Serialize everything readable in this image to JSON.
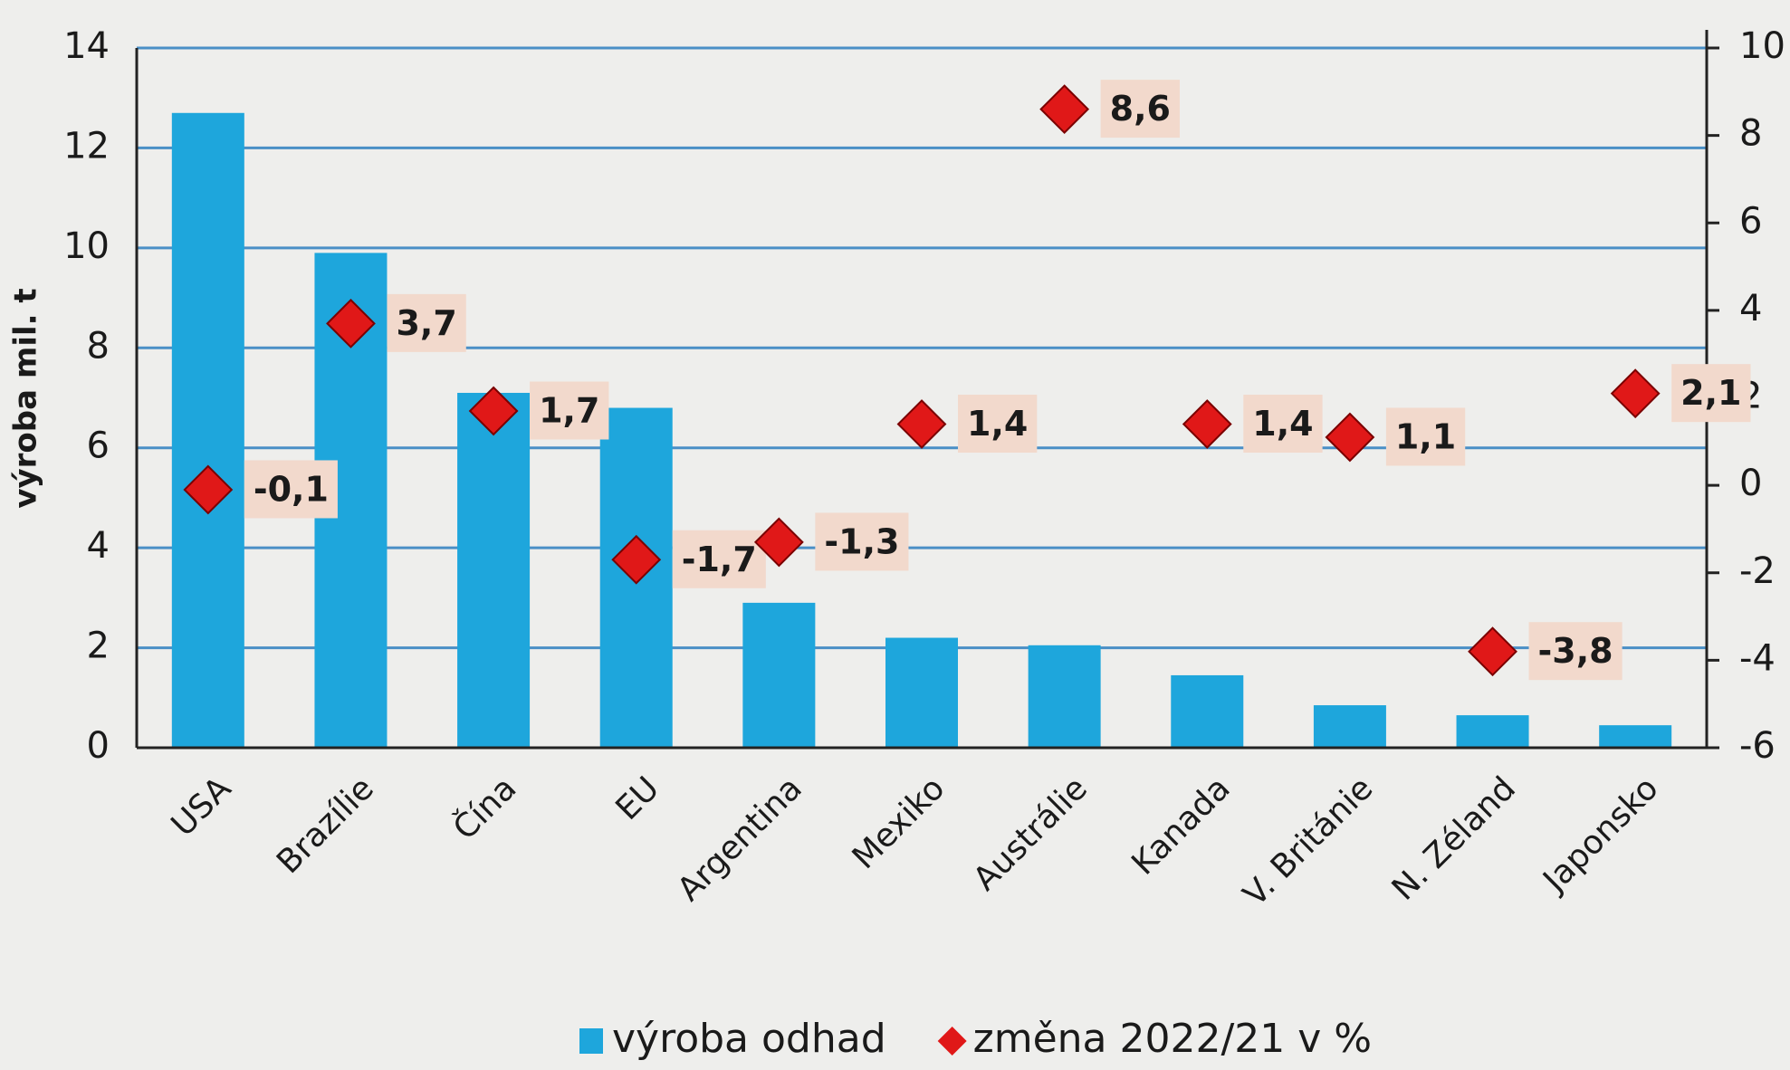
{
  "chart_data": {
    "type": "bar",
    "y_label": "výroba mil. t",
    "categories": [
      "USA",
      "Brazílie",
      "Čína",
      "EU",
      "Argentina",
      "Mexiko",
      "Austrálie",
      "Kanada",
      "V. Británie",
      "N. Zéland",
      "Japonsko"
    ],
    "series": [
      {
        "name": "výroba odhad",
        "type": "bar",
        "color": "#1ea6dc",
        "values": [
          12.7,
          9.9,
          7.1,
          6.8,
          2.9,
          2.2,
          2.05,
          1.45,
          0.85,
          0.65,
          0.45
        ]
      },
      {
        "name": "změna 2022/21 v %",
        "type": "scatter",
        "axis": "y2",
        "color": "#e01818",
        "values": [
          -0.1,
          3.7,
          1.7,
          -1.7,
          -1.3,
          1.4,
          8.6,
          1.4,
          1.1,
          -3.8,
          2.1
        ],
        "value_labels": [
          "-0,1",
          "3,7",
          "1,7",
          "-1,7",
          "-1,3",
          "1,4",
          "8,6",
          "1,4",
          "1,1",
          "-3,8",
          "2,1"
        ]
      }
    ],
    "ylim": [
      0,
      14
    ],
    "yticks": [
      0,
      2,
      4,
      6,
      8,
      10,
      12,
      14
    ],
    "y2lim": [
      -6,
      10
    ],
    "y2ticks": [
      -6,
      -4,
      -2,
      0,
      2,
      4,
      6,
      8,
      10
    ],
    "grid": true,
    "legend": "bottom"
  }
}
